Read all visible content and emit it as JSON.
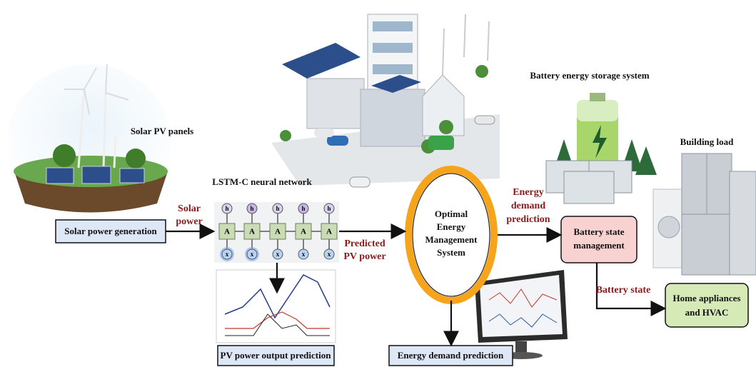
{
  "labels": {
    "solar_pv_panels": "Solar PV panels",
    "solar_power": [
      "Solar",
      "power"
    ],
    "lstm_title": "LSTM-C neural network",
    "lstm_cells": [
      "A",
      "A",
      "A",
      "A",
      "A"
    ],
    "lstm_outputs": [
      "h",
      "h",
      "h",
      "h",
      "h"
    ],
    "lstm_inputs": [
      "x",
      "x",
      "x",
      "x",
      "x"
    ],
    "predicted_pv_power": [
      "Predicted",
      "PV power"
    ],
    "oems": [
      "Optimal",
      "Energy",
      "Management",
      "System"
    ],
    "energy_demand_prediction_arrow": [
      "Energy",
      "demand",
      "prediction"
    ],
    "battery_storage": "Battery energy storage system",
    "building_load": "Building load",
    "battery_state": "Battery state"
  },
  "boxes": {
    "solar_power_generation": "Solar power generation",
    "pv_power_output_prediction": "PV power output prediction",
    "energy_demand_prediction": "Energy demand prediction",
    "battery_state_management": [
      "Battery state",
      "management"
    ],
    "home_appliances": [
      "Home appliances",
      "and HVAC"
    ]
  }
}
